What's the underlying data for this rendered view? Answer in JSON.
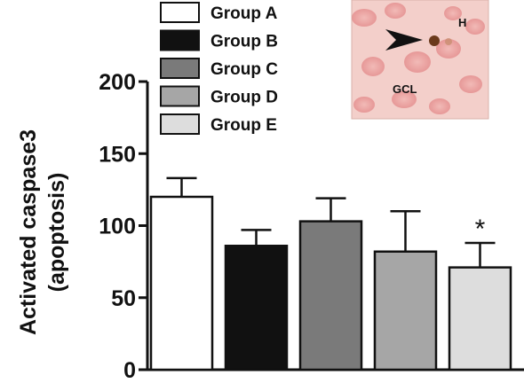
{
  "chart_data": {
    "type": "bar",
    "categories": [
      "Group A",
      "Group B",
      "Group C",
      "Group D",
      "Group E"
    ],
    "values": [
      120,
      86,
      103,
      82,
      71
    ],
    "errors": [
      13,
      11,
      16,
      28,
      17
    ],
    "colors": [
      "#ffffff",
      "#111111",
      "#7a7a7a",
      "#a6a6a6",
      "#dddddd"
    ],
    "annotations": [
      "",
      "",
      "",
      "",
      "*"
    ],
    "ylabel": [
      "Activated caspase3",
      "(apoptosis)"
    ],
    "yticks": [
      0,
      50,
      100,
      150,
      200
    ],
    "ylim": [
      0,
      200
    ],
    "legend": {
      "entries": [
        "Group A",
        "Group B",
        "Group C",
        "Group D",
        "Group E"
      ],
      "placement": "top-center"
    },
    "grid": false
  },
  "inset": {
    "description_labels": [
      "H",
      "GCL"
    ],
    "arrow_icon": "arrowhead-icon"
  }
}
